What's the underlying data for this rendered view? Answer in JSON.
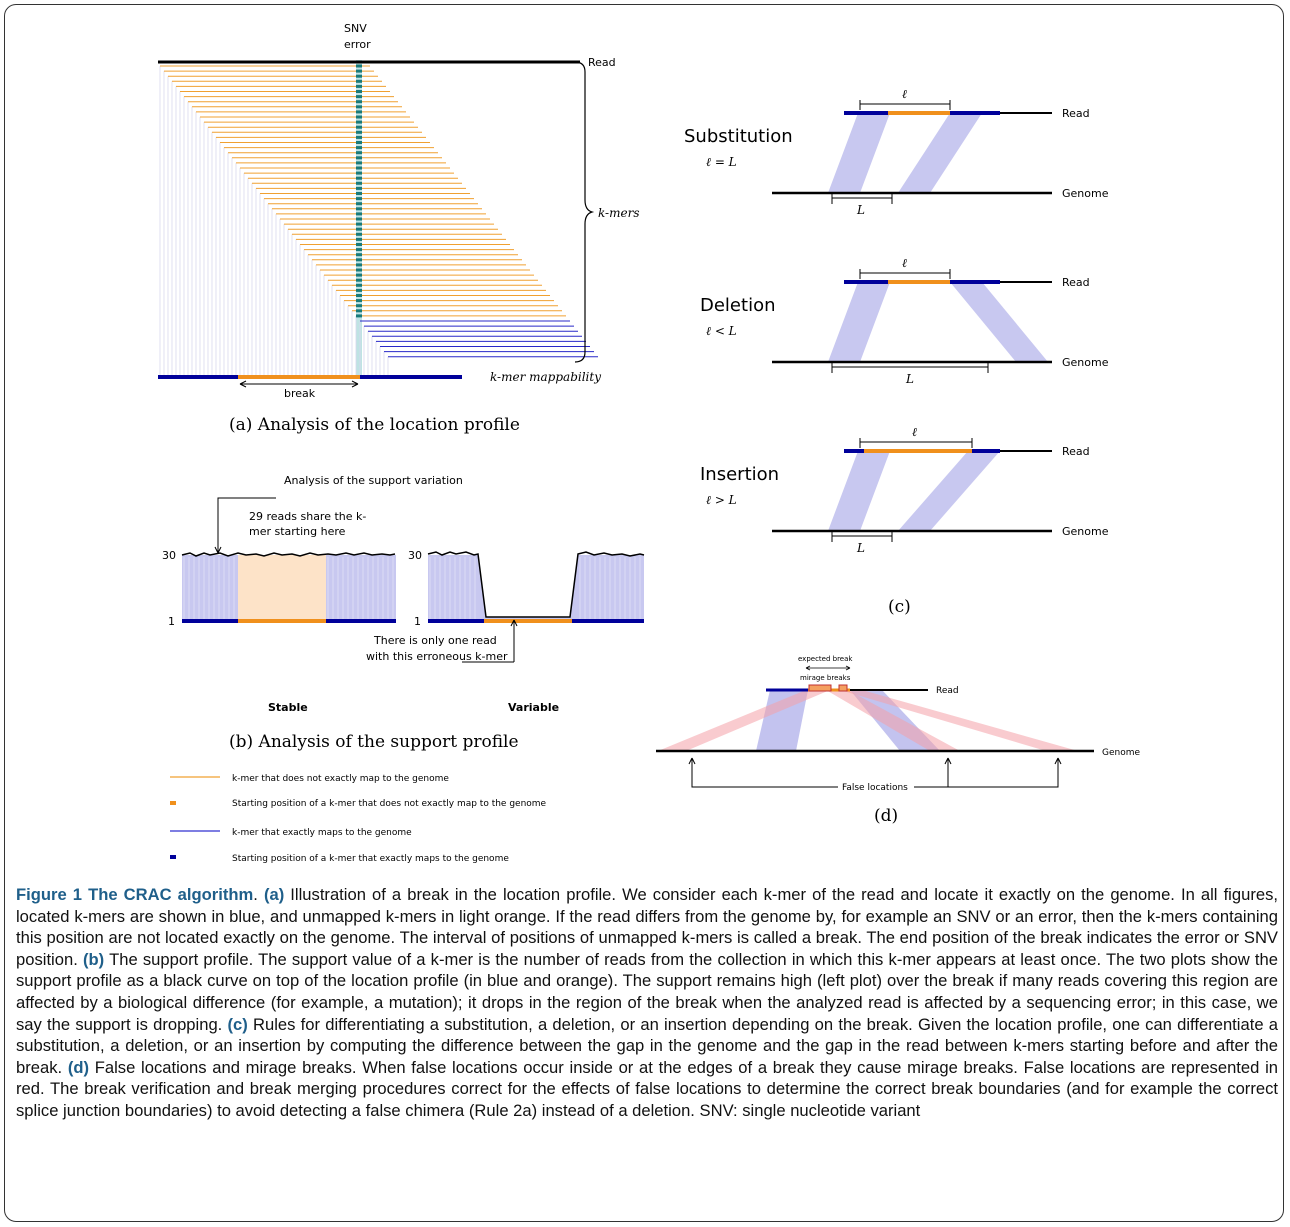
{
  "panel_a": {
    "snv_label_1": "SNV",
    "snv_label_2": "error",
    "read_label": "Read",
    "kmers_label": "k-mers",
    "mappability_label": "k-mer mappability",
    "break_label": "break",
    "caption": "(a) Analysis of the location profile"
  },
  "panel_b": {
    "title": "Analysis of the support variation",
    "annot_top_1": "29 reads share the k-",
    "annot_top_2": "mer starting here",
    "y_top": "30",
    "y_bottom": "1",
    "y_top_2": "30",
    "y_bottom_2": "1",
    "annot_bottom_1": "There is only one read",
    "annot_bottom_2": "with this erroneous k-mer",
    "stable_label": "Stable",
    "variable_label": "Variable",
    "caption": "(b) Analysis of the support profile"
  },
  "legend": {
    "item1": "k-mer that does not exactly map to the genome",
    "item2": "Starting position of a k-mer that does not exactly map to the genome",
    "item3": "k-mer that exactly maps to the genome",
    "item4": "Starting position of a k-mer that exactly maps to the genome"
  },
  "panel_c": {
    "rows": [
      {
        "name": "Substitution",
        "rule": "ℓ = L",
        "read": "Read",
        "genome": "Genome",
        "ell": "ℓ",
        "L": "L"
      },
      {
        "name": "Deletion",
        "rule": "ℓ < L",
        "read": "Read",
        "genome": "Genome",
        "ell": "ℓ",
        "L": "L"
      },
      {
        "name": "Insertion",
        "rule": "ℓ > L",
        "read": "Read",
        "genome": "Genome",
        "ell": "ℓ",
        "L": "L"
      }
    ],
    "caption": "(c)"
  },
  "panel_d": {
    "expected_break": "expected break",
    "mirage_breaks": "mirage breaks",
    "read": "Read",
    "genome": "Genome",
    "false_locations": "False locations",
    "caption": "(d)"
  },
  "caption": {
    "title": "Figure 1 The CRAC algorithm",
    "a_tag": "(a)",
    "a_text": " Illustration of a break in the location profile. We consider each k-mer of the read and locate it exactly on the genome. In all figures, located k-mers are shown in blue, and unmapped k-mers in light orange. If the read differs from the genome by, for example an SNV or an error, then the k-mers containing this position are not located exactly on the genome. The interval of positions of unmapped k-mers is called a break. The end position of the break indicates the error or SNV position. ",
    "b_tag": "(b)",
    "b_text": " The support profile. The support value of a k-mer is the number of reads from the collection in which this k-mer appears at least once. The two plots show the support profile as a black curve on top of the location profile (in blue and orange). The support remains high (left plot) over the break if many reads covering this region are affected by a biological difference (for example, a mutation); it drops in the region of the break when the analyzed read is affected by a sequencing error; in this case, we say the support is dropping. ",
    "c_tag": "(c)",
    "c_text": " Rules for differentiating a substitution, a deletion, or an insertion depending on the break. Given the location profile, one can differentiate a substitution, a deletion, or an insertion by computing the difference between the gap in the genome and the gap in the read between k-mers starting before and after the break. ",
    "d_tag": "(d)",
    "d_text": " False locations and mirage breaks. When false locations occur inside or at the edges of a break they cause mirage breaks. False locations are represented in red. The break verification and break merging procedures correct for the effects of false locations to determine the correct break boundaries (and for example the correct splice junction boundaries) to avoid detecting a false chimera (Rule 2a) instead of a deletion. SNV: single nucleotide variant"
  }
}
